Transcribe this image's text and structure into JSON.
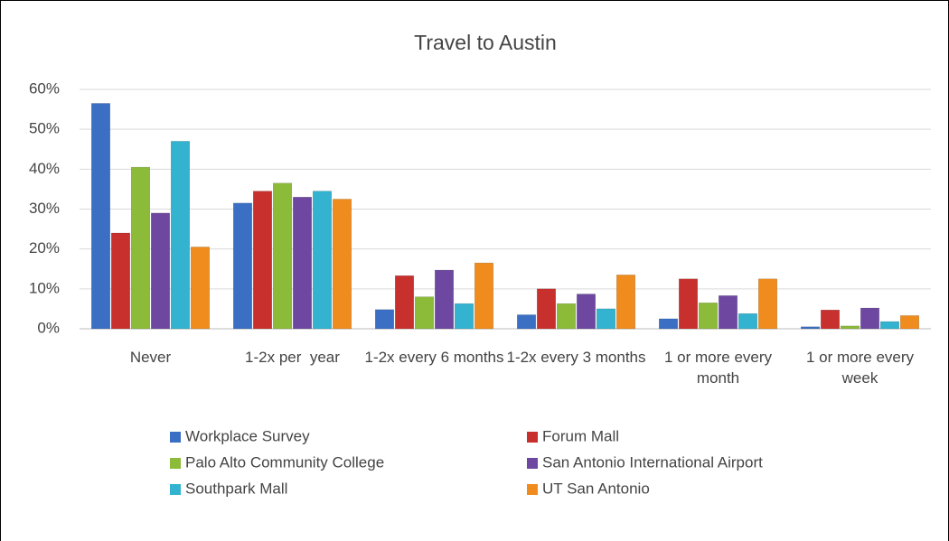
{
  "chart_data": {
    "type": "bar",
    "title": "Travel to Austin",
    "categories": [
      "Never",
      "1-2x per  year",
      "1-2x every 6 months",
      "1-2x every 3 months",
      "1 or more every month",
      "1 or more every week"
    ],
    "series": [
      {
        "name": "Workplace Survey",
        "color": "#3a6fc4",
        "values": [
          56.5,
          31.5,
          4.8,
          3.5,
          2.5,
          0.5
        ]
      },
      {
        "name": "Forum Mall",
        "color": "#c8302e",
        "values": [
          24,
          34.5,
          13.3,
          10,
          12.5,
          4.7
        ]
      },
      {
        "name": "Palo Alto Community College",
        "color": "#8cbb3a",
        "values": [
          40.5,
          36.5,
          8,
          6.3,
          6.5,
          0.7
        ]
      },
      {
        "name": "San Antonio International Airport",
        "color": "#6e48a0",
        "values": [
          29,
          33,
          14.7,
          8.7,
          8.3,
          5.2
        ]
      },
      {
        "name": "Southpark Mall",
        "color": "#33b3d0",
        "values": [
          47,
          34.5,
          6.3,
          5,
          3.8,
          1.8
        ]
      },
      {
        "name": "UT San Antonio",
        "color": "#f08c1e",
        "values": [
          20.5,
          32.5,
          16.5,
          13.5,
          12.5,
          3.3
        ]
      }
    ],
    "ylim": [
      0,
      60
    ],
    "yticks": [
      {
        "value": 0,
        "label": "0%"
      },
      {
        "value": 10,
        "label": "10%"
      },
      {
        "value": 20,
        "label": "20%"
      },
      {
        "value": 30,
        "label": "30%"
      },
      {
        "value": 40,
        "label": "40%"
      },
      {
        "value": 50,
        "label": "50%"
      },
      {
        "value": 60,
        "label": "60%"
      }
    ],
    "grid": true
  }
}
